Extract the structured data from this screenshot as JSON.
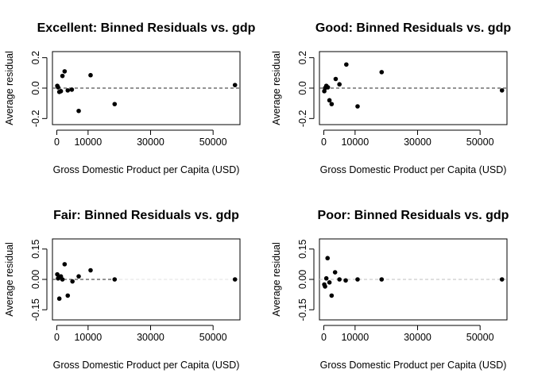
{
  "chart_data": [
    {
      "type": "scatter",
      "title": "Excellent: Binned Residuals vs. gdp",
      "xlabel": "Gross Domestic Product per Capita (USD)",
      "ylabel": "Average residual",
      "xlim": [
        -1400,
        58600
      ],
      "ylim": [
        -0.24,
        0.24
      ],
      "xticks": [
        0,
        10000,
        30000,
        50000
      ],
      "xtick_labels": [
        "0",
        "10000",
        "30000",
        "50000"
      ],
      "yticks": [
        -0.2,
        0.0,
        0.2
      ],
      "ytick_labels": [
        "-0.2",
        "0.0",
        "0.2"
      ],
      "reference_line": {
        "y": 0,
        "style": "dashed",
        "color": "#555555"
      },
      "points": [
        {
          "x": 150,
          "y": 0.015
        },
        {
          "x": 400,
          "y": 0.005
        },
        {
          "x": 800,
          "y": -0.025
        },
        {
          "x": 1300,
          "y": -0.02
        },
        {
          "x": 1800,
          "y": 0.08
        },
        {
          "x": 2500,
          "y": 0.11
        },
        {
          "x": 3500,
          "y": -0.015
        },
        {
          "x": 4800,
          "y": -0.01
        },
        {
          "x": 7000,
          "y": -0.15
        },
        {
          "x": 10800,
          "y": 0.085
        },
        {
          "x": 18500,
          "y": -0.105
        },
        {
          "x": 57000,
          "y": 0.02
        }
      ]
    },
    {
      "type": "scatter",
      "title": "Good: Binned Residuals vs. gdp",
      "xlabel": "Gross Domestic Product per Capita (USD)",
      "ylabel": "Average residual",
      "xlim": [
        -1400,
        58600
      ],
      "ylim": [
        -0.24,
        0.24
      ],
      "xticks": [
        0,
        10000,
        30000,
        50000
      ],
      "xtick_labels": [
        "0",
        "10000",
        "30000",
        "50000"
      ],
      "yticks": [
        -0.2,
        0.0,
        0.2
      ],
      "ytick_labels": [
        "-0.2",
        "0.0",
        "0.2"
      ],
      "reference_line": {
        "y": 0,
        "style": "dashed",
        "color": "#555555"
      },
      "points": [
        {
          "x": 150,
          "y": -0.02
        },
        {
          "x": 400,
          "y": 0.0
        },
        {
          "x": 800,
          "y": 0.015
        },
        {
          "x": 1300,
          "y": 0.005
        },
        {
          "x": 1800,
          "y": -0.08
        },
        {
          "x": 2500,
          "y": -0.105
        },
        {
          "x": 3800,
          "y": 0.06
        },
        {
          "x": 5000,
          "y": 0.025
        },
        {
          "x": 7200,
          "y": 0.155
        },
        {
          "x": 10800,
          "y": -0.12
        },
        {
          "x": 18500,
          "y": 0.105
        },
        {
          "x": 57000,
          "y": -0.015
        }
      ]
    },
    {
      "type": "scatter",
      "title": "Fair: Binned Residuals vs. gdp",
      "xlabel": "Gross Domestic Product per Capita (USD)",
      "ylabel": "Average residual",
      "xlim": [
        -1400,
        58600
      ],
      "ylim": [
        -0.2,
        0.2
      ],
      "xticks": [
        0,
        10000,
        30000,
        50000
      ],
      "xtick_labels": [
        "0",
        "10000",
        "30000",
        "50000"
      ],
      "yticks": [
        -0.15,
        0.0,
        0.15
      ],
      "ytick_labels": [
        "-0.15",
        "0.00",
        "0.15"
      ],
      "reference_line": {
        "y": 0,
        "style": "dashed",
        "color": "#555555",
        "fade_from_x": 20000
      },
      "points": [
        {
          "x": 150,
          "y": 0.025
        },
        {
          "x": 400,
          "y": 0.005
        },
        {
          "x": 800,
          "y": -0.095
        },
        {
          "x": 1300,
          "y": 0.015
        },
        {
          "x": 1800,
          "y": 0.0
        },
        {
          "x": 2500,
          "y": 0.075
        },
        {
          "x": 3500,
          "y": -0.08
        },
        {
          "x": 5000,
          "y": -0.01
        },
        {
          "x": 7000,
          "y": 0.015
        },
        {
          "x": 10800,
          "y": 0.045
        },
        {
          "x": 18500,
          "y": 0.0
        },
        {
          "x": 57000,
          "y": 0.0
        }
      ]
    },
    {
      "type": "scatter",
      "title": "Poor: Binned Residuals vs. gdp",
      "xlabel": "Gross Domestic Product per Capita (USD)",
      "ylabel": "Average residual",
      "xlim": [
        -1400,
        58600
      ],
      "ylim": [
        -0.2,
        0.2
      ],
      "xticks": [
        0,
        10000,
        30000,
        50000
      ],
      "xtick_labels": [
        "0",
        "10000",
        "30000",
        "50000"
      ],
      "yticks": [
        -0.15,
        0.0,
        0.15
      ],
      "ytick_labels": [
        "-0.15",
        "0.00",
        "0.15"
      ],
      "reference_line": {
        "y": 0,
        "style": "dashed",
        "color": "#cccccc"
      },
      "points": [
        {
          "x": 150,
          "y": -0.025
        },
        {
          "x": 400,
          "y": -0.035
        },
        {
          "x": 800,
          "y": 0.005
        },
        {
          "x": 1200,
          "y": 0.105
        },
        {
          "x": 1800,
          "y": -0.015
        },
        {
          "x": 2500,
          "y": -0.08
        },
        {
          "x": 3600,
          "y": 0.035
        },
        {
          "x": 5000,
          "y": 0.0
        },
        {
          "x": 7000,
          "y": -0.005
        },
        {
          "x": 10800,
          "y": 0.0
        },
        {
          "x": 18500,
          "y": 0.0
        },
        {
          "x": 57000,
          "y": 0.0
        }
      ]
    }
  ]
}
